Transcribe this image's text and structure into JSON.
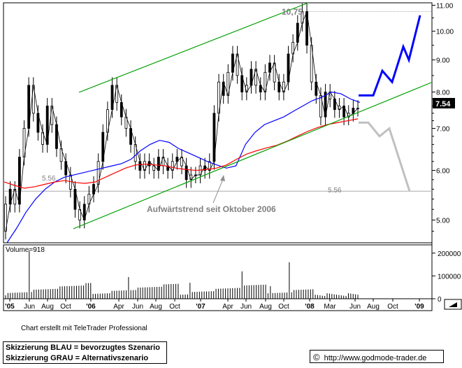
{
  "chart_data": {
    "type": "line",
    "price_panel": {
      "x_labels": [
        "'05",
        "Jun",
        "Aug",
        "Oct",
        "'06",
        "Apr",
        "Jun",
        "Aug",
        "Oct",
        "'07",
        "Apr",
        "Jun",
        "Aug",
        "Oct",
        "'08",
        "Mar",
        "Jun",
        "Aug",
        "Oct",
        "'09"
      ],
      "y_ticks": [
        "11.00",
        "10.00",
        "9.00",
        "8.00",
        "7.00",
        "6.00",
        "5.00"
      ],
      "ylim": [
        4.6,
        11.1
      ],
      "y_scale": "log",
      "last_price_label": "7.54",
      "high_label": "10,75",
      "support_label_left": "5.56",
      "support_label_right": "5.56",
      "support_level": 5.56,
      "high_value": 10.75,
      "last_price": 7.54,
      "trend_annotation": "Aufwärtstrend seit Oktober 2006",
      "price_series": [
        4.8,
        5.3,
        5.6,
        5.3,
        6.3,
        7.0,
        8.2,
        7.4,
        6.9,
        6.6,
        7.6,
        7.1,
        6.5,
        6.2,
        5.9,
        5.6,
        5.2,
        5.0,
        5.3,
        5.5,
        5.7,
        6.2,
        6.9,
        7.5,
        8.2,
        7.7,
        7.3,
        7.0,
        6.6,
        6.2,
        6.0,
        6.2,
        6.1,
        6.0,
        6.3,
        6.1,
        6.0,
        6.2,
        6.3,
        6.1,
        5.8,
        5.9,
        5.9,
        6.1,
        6.0,
        6.2,
        7.4,
        8.3,
        7.9,
        8.6,
        9.2,
        8.5,
        8.0,
        8.2,
        8.7,
        8.2,
        8.0,
        8.6,
        8.9,
        8.3,
        8.0,
        8.3,
        9.2,
        9.6,
        10.3,
        10.75,
        9.5,
        8.3,
        7.9,
        7.3,
        8.0,
        7.8,
        7.5,
        7.6,
        7.3,
        7.4,
        7.54
      ],
      "moving_averages": [
        {
          "color": "#0000ff",
          "values": [
            4.6,
            4.85,
            5.15,
            5.4,
            5.6,
            5.75,
            5.85,
            5.9,
            5.95,
            6.0,
            6.05,
            6.1,
            6.15,
            6.25,
            6.45,
            6.6,
            6.7,
            6.65,
            6.5,
            6.4,
            6.3,
            6.2,
            6.12,
            6.05,
            6.1,
            6.6,
            6.9,
            7.1,
            7.2,
            7.3,
            7.45,
            7.6,
            7.75,
            7.85,
            8.0,
            7.95,
            7.8,
            7.7
          ]
        },
        {
          "color": "#ff0000",
          "values": [
            5.75,
            5.68,
            5.62,
            5.65,
            5.7,
            5.75,
            5.78,
            5.74,
            5.72,
            5.75,
            5.85,
            5.95,
            6.05,
            6.12,
            6.14,
            6.12,
            6.1,
            6.05,
            6.02,
            6.0,
            6.02,
            6.05,
            6.12,
            6.25,
            6.37,
            6.45,
            6.52,
            6.58,
            6.68,
            6.8,
            6.92,
            7.02,
            7.1,
            7.15,
            7.2,
            7.25
          ]
        }
      ],
      "channel_color": "#00a000",
      "support_color": "#aaaaaa",
      "scenario_blue": {
        "color": "#0000ff",
        "values": [
          7.9,
          7.9,
          8.65,
          8.3,
          9.45,
          9.0,
          10.6
        ]
      },
      "scenario_grey": {
        "color": "#c0c0c0",
        "values": [
          7.15,
          7.15,
          6.8,
          7.0,
          5.56
        ]
      }
    },
    "volume_panel": {
      "label": "Volume=918",
      "y_ticks": [
        "200000",
        "100000",
        "0"
      ],
      "ylim": [
        0,
        230000
      ],
      "peaks": [
        210000,
        95000,
        70000,
        120000,
        55000,
        160000,
        40000
      ]
    }
  },
  "footer": {
    "credit": "Chart erstellt mit TeleTrader Professional",
    "legend_blue": "Skizzierung BLAU = bevorzugtes Szenario",
    "legend_grey": "Skizzierung GRAU = Alternativszenario",
    "copyright_symbol": "©",
    "url": "http://www.godmode-trader.de"
  }
}
